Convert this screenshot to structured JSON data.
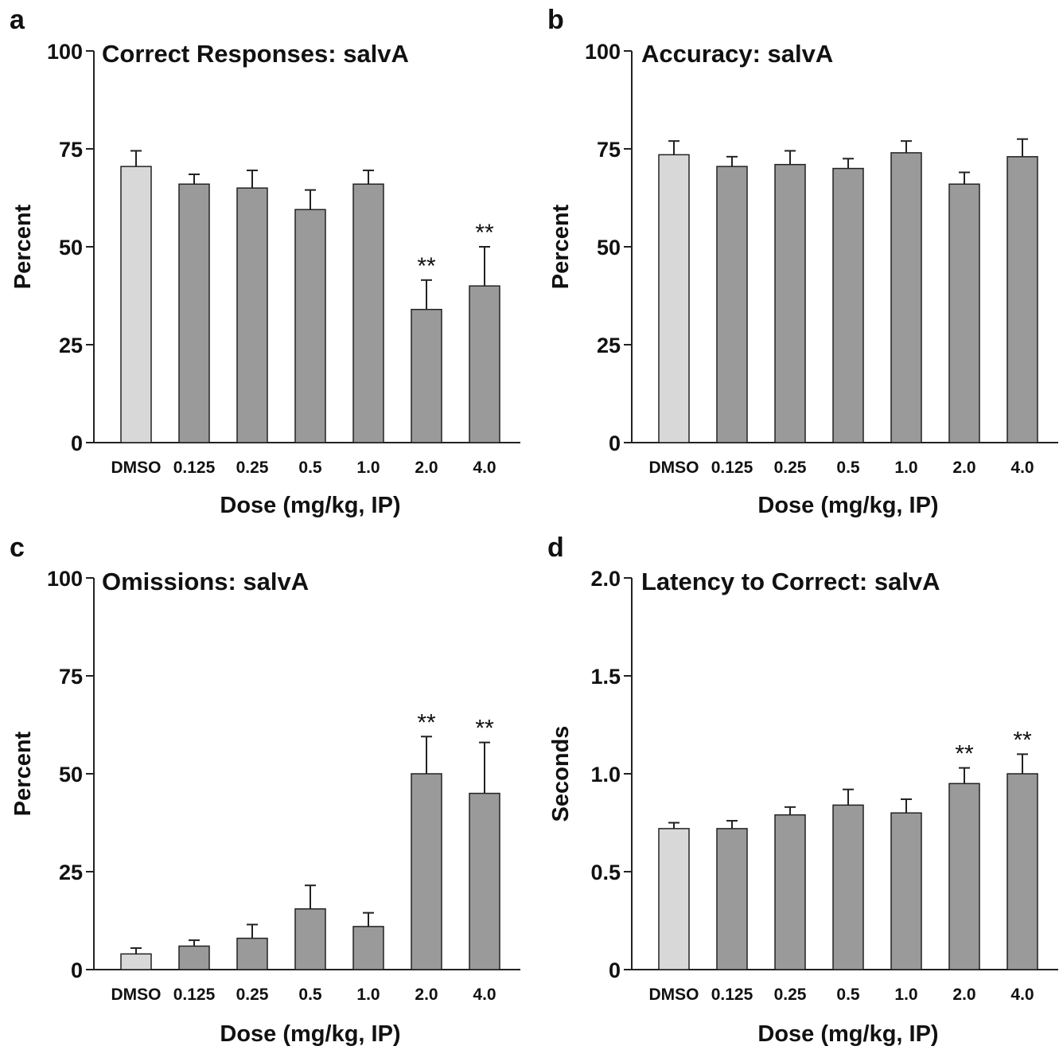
{
  "chart_data": [
    {
      "panel": "a",
      "type": "bar",
      "title": "Correct Responses: salvA",
      "xlabel": "Dose (mg/kg, IP)",
      "ylabel": "Percent",
      "ylim": [
        0,
        100
      ],
      "yticks": [
        "0",
        "25",
        "50",
        "75",
        "100"
      ],
      "categories": [
        "DMSO",
        "0.125",
        "0.25",
        "0.5",
        "1.0",
        "2.0",
        "4.0"
      ],
      "values": [
        70.5,
        66,
        65,
        59.5,
        66,
        34,
        40
      ],
      "errors": [
        4,
        2.5,
        4.5,
        5,
        3.5,
        7.5,
        10
      ],
      "significance": [
        "",
        "",
        "",
        "",
        "",
        "**",
        "**"
      ],
      "colors": {
        "control": "#d8d8d8",
        "treatment": "#9a9a9a"
      }
    },
    {
      "panel": "b",
      "type": "bar",
      "title": "Accuracy: salvA",
      "xlabel": "Dose (mg/kg, IP)",
      "ylabel": "Percent",
      "ylim": [
        0,
        100
      ],
      "yticks": [
        "0",
        "25",
        "50",
        "75",
        "100"
      ],
      "categories": [
        "DMSO",
        "0.125",
        "0.25",
        "0.5",
        "1.0",
        "2.0",
        "4.0"
      ],
      "values": [
        73.5,
        70.5,
        71,
        70,
        74,
        66,
        73
      ],
      "errors": [
        3.5,
        2.5,
        3.5,
        2.5,
        3,
        3,
        4.5
      ],
      "significance": [
        "",
        "",
        "",
        "",
        "",
        "",
        ""
      ],
      "colors": {
        "control": "#d8d8d8",
        "treatment": "#9a9a9a"
      }
    },
    {
      "panel": "c",
      "type": "bar",
      "title": "Omissions: salvA",
      "xlabel": "Dose (mg/kg, IP)",
      "ylabel": "Percent",
      "ylim": [
        0,
        100
      ],
      "yticks": [
        "0",
        "25",
        "50",
        "75",
        "100"
      ],
      "categories": [
        "DMSO",
        "0.125",
        "0.25",
        "0.5",
        "1.0",
        "2.0",
        "4.0"
      ],
      "values": [
        4,
        6,
        8,
        15.5,
        11,
        50,
        45
      ],
      "errors": [
        1.5,
        1.5,
        3.5,
        6,
        3.5,
        9.5,
        13
      ],
      "significance": [
        "",
        "",
        "",
        "",
        "",
        "**",
        "**"
      ],
      "colors": {
        "control": "#d8d8d8",
        "treatment": "#9a9a9a"
      }
    },
    {
      "panel": "d",
      "type": "bar",
      "title": "Latency to Correct: salvA",
      "xlabel": "Dose (mg/kg, IP)",
      "ylabel": "Seconds",
      "ylim": [
        0,
        2
      ],
      "yticks": [
        "0",
        "0.5",
        "1.0",
        "1.5",
        "2.0"
      ],
      "categories": [
        "DMSO",
        "0.125",
        "0.25",
        "0.5",
        "1.0",
        "2.0",
        "4.0"
      ],
      "values": [
        0.72,
        0.72,
        0.79,
        0.84,
        0.8,
        0.95,
        1.0
      ],
      "errors": [
        0.03,
        0.04,
        0.04,
        0.08,
        0.07,
        0.08,
        0.1
      ],
      "significance": [
        "",
        "",
        "",
        "",
        "",
        "**",
        "**"
      ],
      "colors": {
        "control": "#d8d8d8",
        "treatment": "#9a9a9a"
      }
    }
  ]
}
